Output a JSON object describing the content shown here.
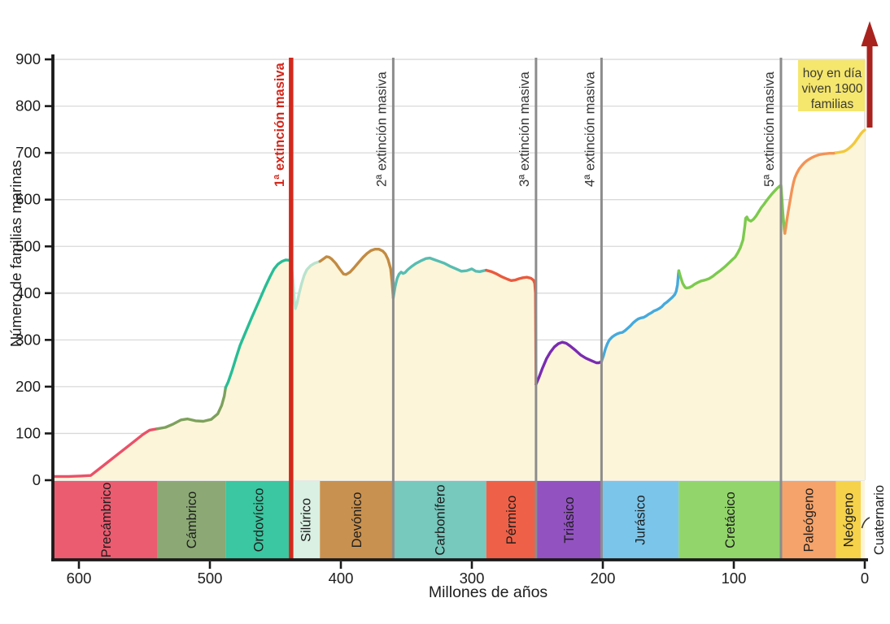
{
  "chart_data": {
    "type": "area",
    "title": "",
    "xlabel": "Millones de años",
    "ylabel": "Número de familias marinas",
    "x_range": [
      619,
      0
    ],
    "y_range": [
      0,
      900
    ],
    "x_ticks": [
      600,
      500,
      400,
      300,
      200,
      100,
      0
    ],
    "y_ticks": [
      0,
      100,
      200,
      300,
      400,
      500,
      600,
      700,
      800,
      900
    ],
    "grid": true,
    "colors": {
      "grid": "#d9d9d9",
      "axis": "#1a1a1a",
      "text": "#1d1d1d",
      "extinction_major": "#d3281c",
      "extinction_minor": "#8c8c8c",
      "arrow": "#a8231e",
      "note_bg": "#f5e66e",
      "note_text": "#3c3c30"
    },
    "note_box": {
      "lines": [
        "hoy en día",
        "viven 1900",
        "familias"
      ]
    },
    "extinctions": [
      {
        "label": "1ª extinción masiva",
        "ma": 438,
        "major": true
      },
      {
        "label": "2ª extinción masiva",
        "ma": 360,
        "major": false
      },
      {
        "label": "3ª extinción masiva",
        "ma": 251,
        "major": false
      },
      {
        "label": "4ª extinción masiva",
        "ma": 201,
        "major": false
      },
      {
        "label": "5ª extinción masiva",
        "ma": 64,
        "major": false
      }
    ],
    "periods": [
      {
        "name": "Precámbrico",
        "from": 619,
        "to": 540,
        "band": "#eb5c70",
        "fill": "#f6aeb8",
        "line": "#ea5168",
        "points": [
          [
            619,
            8
          ],
          [
            608,
            8
          ],
          [
            598,
            9
          ],
          [
            591,
            10
          ],
          [
            581,
            32
          ],
          [
            571,
            54
          ],
          [
            561,
            76
          ],
          [
            551,
            98
          ],
          [
            546,
            107
          ],
          [
            540,
            110
          ]
        ]
      },
      {
        "name": "Cámbrico",
        "from": 540,
        "to": 488,
        "band": "#8ca975",
        "fill": "#c8d2ae",
        "line": "#7da15c",
        "points": [
          [
            540,
            110
          ],
          [
            534,
            113
          ],
          [
            528,
            120
          ],
          [
            522,
            129
          ],
          [
            517,
            131
          ],
          [
            511,
            127
          ],
          [
            505,
            126
          ],
          [
            499,
            130
          ],
          [
            494,
            142
          ],
          [
            491,
            160
          ],
          [
            489,
            180
          ],
          [
            488,
            198
          ]
        ]
      },
      {
        "name": "Ordovícico",
        "from": 488,
        "to": 438,
        "band": "#3ac7a1",
        "fill": "#c9edde",
        "line": "#27bd95",
        "points": [
          [
            488,
            198
          ],
          [
            486,
            210
          ],
          [
            483,
            235
          ],
          [
            480,
            262
          ],
          [
            477,
            288
          ],
          [
            473,
            315
          ],
          [
            468,
            348
          ],
          [
            463,
            380
          ],
          [
            458,
            412
          ],
          [
            454,
            436
          ],
          [
            451,
            452
          ],
          [
            448,
            462
          ],
          [
            445,
            468
          ],
          [
            442,
            471
          ],
          [
            438,
            470
          ]
        ]
      },
      {
        "name": "Silúrico",
        "from": 438,
        "to": 416,
        "band": "#d9f0e3",
        "fill": "#e6f5ee",
        "line": "#b9e3cd",
        "points": [
          [
            438,
            470
          ],
          [
            436.5,
            428
          ],
          [
            435.5,
            385
          ],
          [
            434.7,
            367
          ],
          [
            433.5,
            378
          ],
          [
            432,
            398
          ],
          [
            430,
            420
          ],
          [
            428,
            438
          ],
          [
            426,
            450
          ],
          [
            423,
            459
          ],
          [
            420,
            464
          ],
          [
            418,
            466
          ],
          [
            416,
            468
          ]
        ]
      },
      {
        "name": "Devónico",
        "from": 416,
        "to": 360,
        "band": "#c9914f",
        "fill": "#e2c49c",
        "line": "#c28b42",
        "points": [
          [
            416,
            468
          ],
          [
            413,
            474
          ],
          [
            411,
            478
          ],
          [
            409,
            477
          ],
          [
            407,
            473
          ],
          [
            404,
            464
          ],
          [
            401,
            452
          ],
          [
            398,
            441
          ],
          [
            396,
            440
          ],
          [
            393,
            445
          ],
          [
            390,
            454
          ],
          [
            387,
            464
          ],
          [
            383,
            477
          ],
          [
            380,
            485
          ],
          [
            377,
            491
          ],
          [
            374,
            494
          ],
          [
            371,
            494
          ],
          [
            368,
            490
          ],
          [
            366,
            484
          ],
          [
            364,
            472
          ],
          [
            362,
            452
          ],
          [
            361,
            425
          ],
          [
            360,
            390
          ]
        ]
      },
      {
        "name": "Carbonífero",
        "from": 360,
        "to": 289,
        "band": "#77c8bd",
        "fill": "#cfeae5",
        "line": "#57bdb1",
        "points": [
          [
            360,
            390
          ],
          [
            358.5,
            415
          ],
          [
            357,
            432
          ],
          [
            355.5,
            441
          ],
          [
            354,
            445
          ],
          [
            352.5,
            442
          ],
          [
            351,
            444
          ],
          [
            349,
            450
          ],
          [
            346,
            457
          ],
          [
            343,
            463
          ],
          [
            339,
            469
          ],
          [
            335,
            474
          ],
          [
            332,
            475
          ],
          [
            329,
            472
          ],
          [
            325,
            468
          ],
          [
            321,
            464
          ],
          [
            317,
            458
          ],
          [
            312,
            452
          ],
          [
            308,
            447
          ],
          [
            304,
            448
          ],
          [
            300,
            452
          ],
          [
            297,
            447
          ],
          [
            294,
            446
          ],
          [
            291,
            448
          ],
          [
            289,
            449
          ]
        ]
      },
      {
        "name": "Pérmico",
        "from": 289,
        "to": 251,
        "band": "#ee6148",
        "fill": "#f9b6a2",
        "line": "#e95a3d",
        "points": [
          [
            289,
            449
          ],
          [
            285,
            446
          ],
          [
            281,
            441
          ],
          [
            277,
            435
          ],
          [
            273,
            430
          ],
          [
            270,
            427
          ],
          [
            267,
            428
          ],
          [
            264,
            431
          ],
          [
            261,
            433
          ],
          [
            258,
            434
          ],
          [
            255,
            432
          ],
          [
            253,
            428
          ],
          [
            252,
            421
          ],
          [
            251.4,
            400
          ],
          [
            251,
            205
          ]
        ]
      },
      {
        "name": "Triásico",
        "from": 251,
        "to": 201,
        "band": "#9252c0",
        "fill": "#c8a5e0",
        "line": "#7a2cb0",
        "points": [
          [
            251,
            205
          ],
          [
            249,
            218
          ],
          [
            246,
            240
          ],
          [
            243,
            260
          ],
          [
            240,
            274
          ],
          [
            237,
            285
          ],
          [
            234,
            292
          ],
          [
            231,
            295
          ],
          [
            228,
            293
          ],
          [
            225,
            287
          ],
          [
            221,
            278
          ],
          [
            217,
            268
          ],
          [
            213,
            261
          ],
          [
            209,
            256
          ],
          [
            205,
            251
          ],
          [
            203,
            251
          ],
          [
            201,
            254
          ]
        ]
      },
      {
        "name": "Jurásico",
        "from": 201,
        "to": 142,
        "band": "#7cc5ea",
        "fill": "#c0e3f5",
        "line": "#45aadd",
        "points": [
          [
            201,
            254
          ],
          [
            199.5,
            266
          ],
          [
            198,
            281
          ],
          [
            196.5,
            292
          ],
          [
            195,
            300
          ],
          [
            193,
            306
          ],
          [
            191,
            310
          ],
          [
            189,
            313
          ],
          [
            187,
            315
          ],
          [
            185,
            316
          ],
          [
            183,
            320
          ],
          [
            181,
            325
          ],
          [
            179,
            330
          ],
          [
            177,
            336
          ],
          [
            175,
            341
          ],
          [
            173,
            345
          ],
          [
            171,
            347
          ],
          [
            169,
            348
          ],
          [
            167,
            351
          ],
          [
            165,
            355
          ],
          [
            163,
            358
          ],
          [
            161,
            362
          ],
          [
            159,
            364
          ],
          [
            157,
            367
          ],
          [
            155,
            371
          ],
          [
            153,
            377
          ],
          [
            151,
            381
          ],
          [
            149,
            386
          ],
          [
            147,
            391
          ],
          [
            145,
            397
          ],
          [
            144,
            404
          ],
          [
            143,
            418
          ],
          [
            142.3,
            441
          ],
          [
            142,
            448
          ]
        ]
      },
      {
        "name": "Cretácico",
        "from": 142,
        "to": 64,
        "band": "#92d56a",
        "fill": "#d5efbf",
        "line": "#7cca4e",
        "points": [
          [
            142,
            448
          ],
          [
            141,
            438
          ],
          [
            140,
            429
          ],
          [
            139,
            421
          ],
          [
            138,
            416
          ],
          [
            137,
            412
          ],
          [
            136,
            411
          ],
          [
            134,
            412
          ],
          [
            132,
            415
          ],
          [
            130,
            419
          ],
          [
            128,
            422
          ],
          [
            125,
            426
          ],
          [
            122,
            428
          ],
          [
            119,
            431
          ],
          [
            116,
            436
          ],
          [
            113,
            443
          ],
          [
            110,
            449
          ],
          [
            107,
            456
          ],
          [
            104,
            464
          ],
          [
            101,
            472
          ],
          [
            99,
            477
          ],
          [
            97,
            486
          ],
          [
            95,
            497
          ],
          [
            93,
            514
          ],
          [
            91.5,
            545
          ],
          [
            91,
            560
          ],
          [
            90,
            563
          ],
          [
            89,
            557
          ],
          [
            87,
            554
          ],
          [
            85,
            558
          ],
          [
            83,
            565
          ],
          [
            81,
            574
          ],
          [
            79,
            583
          ],
          [
            77,
            590
          ],
          [
            75,
            598
          ],
          [
            73,
            605
          ],
          [
            71,
            612
          ],
          [
            69,
            618
          ],
          [
            67,
            624
          ],
          [
            65,
            629
          ],
          [
            64,
            631
          ],
          [
            63.3,
            605
          ],
          [
            62.5,
            570
          ],
          [
            61.5,
            537
          ],
          [
            61,
            528
          ]
        ]
      },
      {
        "name": "Paleógeno",
        "from": 64,
        "to": 22,
        "band": "#f5a36b",
        "fill": "#fbd7ba",
        "line": "#f29356",
        "points": [
          [
            61,
            528
          ],
          [
            60.3,
            540
          ],
          [
            59.5,
            556
          ],
          [
            58.5,
            574
          ],
          [
            57.5,
            590
          ],
          [
            56.5,
            606
          ],
          [
            55.5,
            622
          ],
          [
            54.5,
            636
          ],
          [
            53.5,
            646
          ],
          [
            52,
            656
          ],
          [
            50,
            666
          ],
          [
            48,
            673
          ],
          [
            46,
            679
          ],
          [
            44,
            684
          ],
          [
            41,
            689
          ],
          [
            38,
            693
          ],
          [
            35,
            696
          ],
          [
            31,
            698
          ],
          [
            27,
            699
          ],
          [
            24,
            699
          ],
          [
            22,
            700
          ]
        ]
      },
      {
        "name": "Neógeno",
        "from": 22,
        "to": 3,
        "band": "#f6d24a",
        "fill": "#fcedbd",
        "line": "#f2c83c",
        "points": [
          [
            22,
            700
          ],
          [
            20,
            701
          ],
          [
            18,
            702
          ],
          [
            16,
            703
          ],
          [
            14,
            706
          ],
          [
            12,
            710
          ],
          [
            10,
            715
          ],
          [
            8,
            721
          ],
          [
            6,
            729
          ],
          [
            4.5,
            735
          ],
          [
            3,
            741
          ]
        ]
      },
      {
        "name": "Cuaternario",
        "from": 3,
        "to": 0,
        "band": "#fdf4d8",
        "fill": "#fdf5d9",
        "line": "#f2c83c",
        "label_outside": true,
        "points": [
          [
            3,
            741
          ],
          [
            2,
            744
          ],
          [
            1,
            747
          ],
          [
            0,
            749
          ]
        ]
      }
    ]
  }
}
